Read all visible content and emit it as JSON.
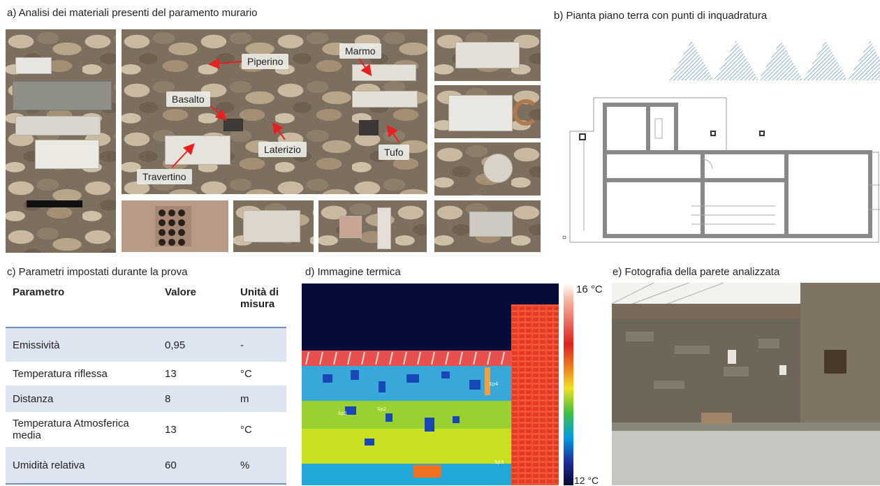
{
  "captions": {
    "a": "a) Analisi dei materiali presenti del paramento murario",
    "b": "b) Pianta piano terra con punti di inquadratura",
    "c": "c) Parametri impostati durante la prova",
    "d": "d) Immagine termica",
    "e": "e) Fotografia della parete analizzata"
  },
  "materials": {
    "piperino": "Piperino",
    "marmo": "Marmo",
    "basalto": "Basalto",
    "laterizio": "Laterizio",
    "tufo": "Tufo",
    "travertino": "Travertino"
  },
  "table": {
    "headers": [
      "Parametro",
      "Valore",
      "Unità di misura"
    ],
    "rows": [
      {
        "parametro": "Emissività",
        "valore": "0,95",
        "unita": "-"
      },
      {
        "parametro": "Temperatura riflessa",
        "valore": "13",
        "unita": "°C"
      },
      {
        "parametro": "Distanza",
        "valore": "8",
        "unita": "m"
      },
      {
        "parametro": "Temperatura Atmosferica media",
        "valore": "13",
        "unita": "°C"
      },
      {
        "parametro": "Umidità relativa",
        "valore": "60",
        "unita": "%"
      }
    ]
  },
  "thermal": {
    "scale_max": "16 °C",
    "scale_min": "12 °C",
    "spots": [
      "Sp1",
      "Sp2",
      "Sp3",
      "Sp4"
    ]
  }
}
